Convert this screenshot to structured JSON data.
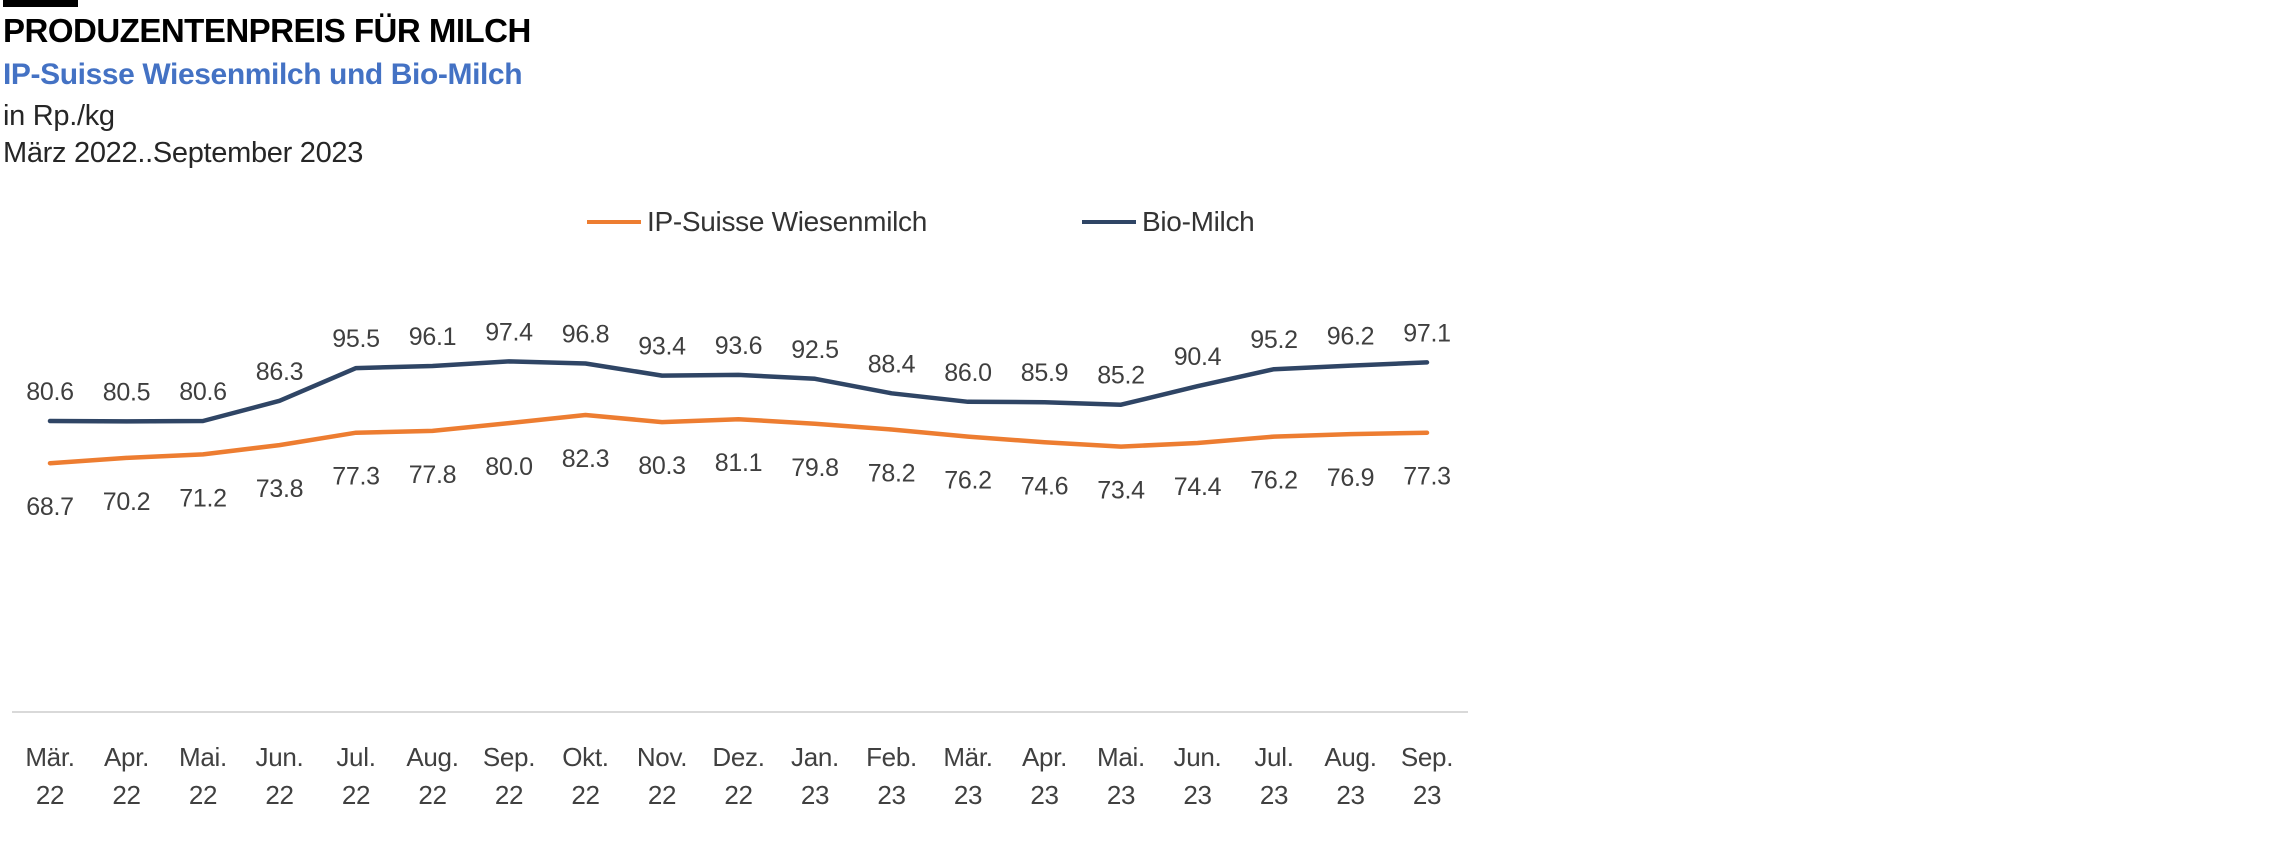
{
  "header": {
    "title": "PRODUZENTENPREIS FÜR MILCH",
    "subtitle": "IP-Suisse Wiesenmilch und Bio-Milch",
    "unit_line": "in Rp./kg",
    "period_line": "März 2022..September 2023"
  },
  "colors": {
    "accent_bar": "#000000",
    "subtitle_blue": "#4472C4",
    "ip_suisse_orange": "#ED7D31",
    "bio_milch_navy": "#2F4565",
    "data_label_gray": "#3F3F3F",
    "axis_tick_gray": "#404040",
    "axis_line_gray": "#D9D9D9"
  },
  "legend": {
    "items": [
      {
        "label": "IP-Suisse Wiesenmilch",
        "color": "#ED7D31"
      },
      {
        "label": "Bio-Milch",
        "color": "#2F4565"
      }
    ]
  },
  "chart_data": {
    "type": "line",
    "title": "PRODUZENTENPREIS FÜR MILCH",
    "subtitle": "IP-Suisse Wiesenmilch und Bio-Milch",
    "ylabel": "Rp./kg",
    "x_tick_months": [
      "Mär.",
      "Apr.",
      "Mai.",
      "Jun.",
      "Jul.",
      "Aug.",
      "Sep.",
      "Okt.",
      "Nov.",
      "Dez.",
      "Jan.",
      "Feb.",
      "Mär.",
      "Apr.",
      "Mai.",
      "Jun.",
      "Jul.",
      "Aug.",
      "Sep."
    ],
    "x_tick_years": [
      "22",
      "22",
      "22",
      "22",
      "22",
      "22",
      "22",
      "22",
      "22",
      "22",
      "23",
      "23",
      "23",
      "23",
      "23",
      "23",
      "23",
      "23",
      "23"
    ],
    "series": [
      {
        "name": "IP-Suisse Wiesenmilch",
        "color": "#ED7D31",
        "label_position": "below",
        "values": [
          68.7,
          70.2,
          71.2,
          73.8,
          77.3,
          77.8,
          80.0,
          82.3,
          80.3,
          81.1,
          79.8,
          78.2,
          76.2,
          74.6,
          73.4,
          74.4,
          76.2,
          76.9,
          77.3
        ]
      },
      {
        "name": "Bio-Milch",
        "color": "#2F4565",
        "label_position": "above",
        "values": [
          80.6,
          80.5,
          80.6,
          86.3,
          95.5,
          96.1,
          97.4,
          96.8,
          93.4,
          93.6,
          92.5,
          88.4,
          86.0,
          85.9,
          85.2,
          90.4,
          95.2,
          96.2,
          97.1
        ]
      }
    ],
    "legend_position": "top-center",
    "grid": false,
    "data_labels": true,
    "data_label_decimals": 1,
    "y_axis_visible": false,
    "x_axis_line": true
  }
}
